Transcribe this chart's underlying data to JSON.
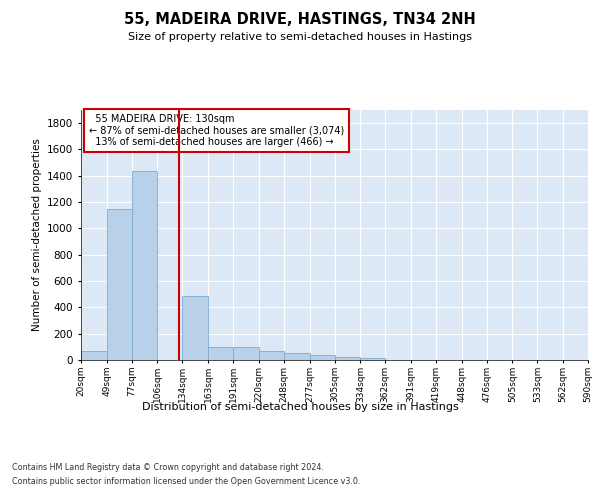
{
  "title": "55, MADEIRA DRIVE, HASTINGS, TN34 2NH",
  "subtitle": "Size of property relative to semi-detached houses in Hastings",
  "xlabel": "Distribution of semi-detached houses by size in Hastings",
  "ylabel": "Number of semi-detached properties",
  "footer_line1": "Contains HM Land Registry data © Crown copyright and database right 2024.",
  "footer_line2": "Contains public sector information licensed under the Open Government Licence v3.0.",
  "annotation_title": "55 MADEIRA DRIVE: 130sqm",
  "annotation_line1": "← 87% of semi-detached houses are smaller (3,074)",
  "annotation_line2": "13% of semi-detached houses are larger (466) →",
  "property_size": 130,
  "bar_color": "#b8d0e8",
  "bar_edge_color": "#7aadd4",
  "vline_color": "#cc0000",
  "annotation_box_edge": "#cc0000",
  "bins": [
    20,
    49,
    77,
    106,
    134,
    163,
    191,
    220,
    248,
    277,
    305,
    334,
    362,
    391,
    419,
    448,
    476,
    505,
    533,
    562,
    590
  ],
  "bar_values": [
    65,
    1150,
    1440,
    0,
    490,
    100,
    100,
    70,
    55,
    40,
    25,
    15,
    0,
    0,
    0,
    0,
    0,
    0,
    0,
    0
  ],
  "ylim": [
    0,
    1900
  ],
  "yticks": [
    0,
    200,
    400,
    600,
    800,
    1000,
    1200,
    1400,
    1600,
    1800
  ],
  "plot_area_color": "#dce8f5",
  "grid_color": "#ffffff",
  "fig_bg": "#ffffff"
}
